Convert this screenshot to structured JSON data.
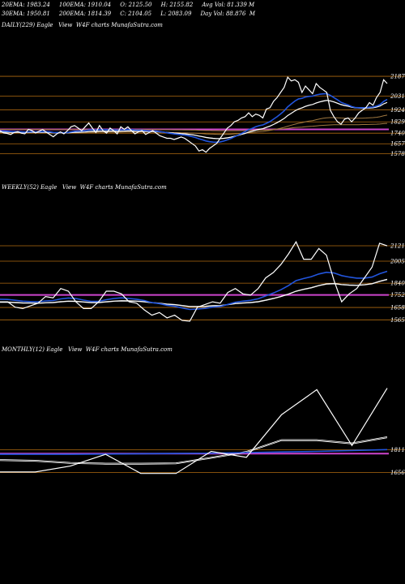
{
  "header": {
    "line1": "20EMA: 1983.24     100EMA: 1910.04     O: 2125.50     H: 2155.82     Avg Vol: 81.339 M",
    "line2": "30EMA: 1950.81     200EMA: 1814.39     C: 2104.05     L: 2083.09     Day Vol: 88.876  M",
    "daily_title": "DAILY(229) Eagle   View  W4F charts MunafaSutra.com",
    "weekly_title": "WEEKLY(52) Eagle   View  W4F charts MunafaSutra.com",
    "monthly_title": "MONTHLY(12) Eagle   View  W4F charts MunafaSutra.com"
  },
  "colors": {
    "background": "#000000",
    "price": "#ffffff",
    "ema_short": "#2255dd",
    "ema_band": "#ffffff",
    "support_line": "#cc44cc",
    "grid": "#b06a10"
  },
  "chart_data": [
    {
      "type": "line",
      "name": "daily",
      "title": "DAILY(229) Eagle   View  W4F charts MunafaSutra.com",
      "yticks": [
        2187,
        2031,
        1924,
        1829,
        1740,
        1657,
        1578
      ],
      "ylim": [
        1480,
        2200
      ],
      "price": [
        1760,
        1742,
        1738,
        1730,
        1745,
        1752,
        1740,
        1735,
        1770,
        1760,
        1742,
        1755,
        1768,
        1748,
        1730,
        1712,
        1735,
        1750,
        1735,
        1760,
        1790,
        1800,
        1780,
        1760,
        1790,
        1820,
        1780,
        1745,
        1800,
        1760,
        1740,
        1780,
        1760,
        1735,
        1790,
        1770,
        1790,
        1760,
        1735,
        1750,
        1760,
        1730,
        1745,
        1760,
        1740,
        1720,
        1710,
        1700,
        1700,
        1690,
        1700,
        1710,
        1700,
        1680,
        1660,
        1640,
        1600,
        1610,
        1590,
        1620,
        1640,
        1660,
        1700,
        1740,
        1780,
        1800,
        1830,
        1840,
        1860,
        1870,
        1900,
        1870,
        1890,
        1880,
        1860,
        1930,
        1940,
        1990,
        2020,
        2060,
        2100,
        2180,
        2150,
        2160,
        2140,
        2060,
        2110,
        2080,
        2050,
        2130,
        2100,
        2080,
        2060,
        1920,
        1870,
        1830,
        1810,
        1850,
        1860,
        1830,
        1860,
        1900,
        1920,
        1940,
        1980,
        1960,
        2020,
        2060,
        2160,
        2130
      ],
      "ema_fast": [
        1758,
        1757,
        1755,
        1753,
        1752,
        1752,
        1751,
        1749,
        1751,
        1752,
        1751,
        1751,
        1753,
        1752,
        1750,
        1746,
        1745,
        1745,
        1744,
        1745,
        1750,
        1755,
        1757,
        1757,
        1760,
        1765,
        1766,
        1765,
        1768,
        1768,
        1766,
        1767,
        1767,
        1764,
        1766,
        1767,
        1769,
        1768,
        1764,
        1763,
        1763,
        1760,
        1758,
        1758,
        1756,
        1752,
        1748,
        1743,
        1739,
        1734,
        1731,
        1728,
        1725,
        1720,
        1714,
        1706,
        1696,
        1688,
        1679,
        1673,
        1670,
        1669,
        1672,
        1678,
        1688,
        1698,
        1711,
        1724,
        1738,
        1752,
        1768,
        1778,
        1790,
        1799,
        1805,
        1818,
        1831,
        1850,
        1869,
        1891,
        1915,
        1947,
        1970,
        1992,
        2009,
        2014,
        2024,
        2029,
        2031,
        2040,
        2046,
        2049,
        2050,
        2037,
        2020,
        2002,
        1983,
        1971,
        1962,
        1949,
        1942,
        1940,
        1940,
        1940,
        1944,
        1945,
        1953,
        1965,
        1990,
        2005
      ],
      "ema_band_a": [
        1752,
        1751,
        1750,
        1749,
        1749,
        1748,
        1748,
        1747,
        1748,
        1748,
        1748,
        1748,
        1749,
        1748,
        1747,
        1745,
        1744,
        1744,
        1744,
        1744,
        1746,
        1748,
        1749,
        1750,
        1751,
        1754,
        1755,
        1755,
        1757,
        1757,
        1756,
        1757,
        1757,
        1756,
        1757,
        1758,
        1759,
        1759,
        1757,
        1757,
        1757,
        1756,
        1755,
        1755,
        1754,
        1752,
        1750,
        1747,
        1745,
        1742,
        1740,
        1738,
        1736,
        1733,
        1730,
        1725,
        1719,
        1714,
        1708,
        1704,
        1701,
        1699,
        1699,
        1701,
        1705,
        1710,
        1717,
        1724,
        1732,
        1740,
        1750,
        1757,
        1765,
        1772,
        1777,
        1787,
        1797,
        1810,
        1824,
        1840,
        1857,
        1880,
        1898,
        1916,
        1931,
        1940,
        1952,
        1961,
        1967,
        1978,
        1987,
        1994,
        1999,
        1995,
        1987,
        1977,
        1966,
        1959,
        1954,
        1946,
        1941,
        1939,
        1938,
        1938,
        1940,
        1941,
        1947,
        1955,
        1972,
        1983
      ],
      "ema_band_b": [
        1749,
        1748,
        1747,
        1746,
        1746,
        1745,
        1745,
        1744,
        1745,
        1745,
        1745,
        1745,
        1746,
        1745,
        1744,
        1742,
        1741,
        1741,
        1741,
        1741,
        1743,
        1745,
        1746,
        1747,
        1748,
        1751,
        1752,
        1752,
        1754,
        1754,
        1753,
        1754,
        1754,
        1753,
        1754,
        1755,
        1756,
        1756,
        1754,
        1754,
        1754,
        1753,
        1752,
        1752,
        1751,
        1749,
        1747,
        1744,
        1742,
        1739,
        1737,
        1735,
        1733,
        1730,
        1727,
        1722,
        1716,
        1711,
        1705,
        1701,
        1698,
        1696,
        1696,
        1698,
        1702,
        1707,
        1714,
        1721,
        1729,
        1737,
        1747,
        1754,
        1762,
        1769,
        1774,
        1784,
        1794,
        1807,
        1821,
        1837,
        1854,
        1877,
        1895,
        1913,
        1928,
        1937,
        1949,
        1958,
        1964,
        1975,
        1984,
        1991,
        1996,
        1992,
        1984,
        1974,
        1963,
        1956,
        1951,
        1943,
        1938,
        1936,
        1935,
        1935,
        1937,
        1938,
        1944,
        1952,
        1969,
        1980
      ],
      "ema_slow": [
        1745,
        1745,
        1745,
        1745,
        1745,
        1745,
        1745,
        1745,
        1745,
        1745,
        1745,
        1745,
        1745,
        1745,
        1745,
        1744,
        1744,
        1744,
        1744,
        1744,
        1745,
        1745,
        1746,
        1746,
        1746,
        1747,
        1747,
        1747,
        1748,
        1748,
        1748,
        1748,
        1748,
        1748,
        1748,
        1749,
        1749,
        1749,
        1749,
        1749,
        1749,
        1749,
        1749,
        1749,
        1748,
        1748,
        1747,
        1747,
        1746,
        1745,
        1745,
        1744,
        1743,
        1742,
        1741,
        1740,
        1738,
        1736,
        1734,
        1733,
        1732,
        1731,
        1730,
        1730,
        1731,
        1732,
        1734,
        1736,
        1738,
        1740,
        1744,
        1746,
        1749,
        1752,
        1754,
        1758,
        1762,
        1767,
        1773,
        1779,
        1786,
        1795,
        1803,
        1811,
        1818,
        1823,
        1830,
        1835,
        1839,
        1846,
        1852,
        1857,
        1861,
        1862,
        1862,
        1861,
        1859,
        1858,
        1858,
        1857,
        1857,
        1857,
        1858,
        1859,
        1861,
        1862,
        1865,
        1869,
        1876,
        1882
      ],
      "ema_200": [
        1770,
        1770,
        1770,
        1770,
        1769,
        1769,
        1769,
        1769,
        1769,
        1769,
        1769,
        1769,
        1769,
        1769,
        1769,
        1768,
        1768,
        1768,
        1768,
        1768,
        1768,
        1768,
        1768,
        1768,
        1768,
        1768,
        1768,
        1768,
        1768,
        1768,
        1768,
        1768,
        1768,
        1768,
        1768,
        1768,
        1768,
        1768,
        1768,
        1768,
        1768,
        1768,
        1768,
        1768,
        1768,
        1768,
        1767,
        1767,
        1767,
        1766,
        1766,
        1766,
        1765,
        1765,
        1764,
        1764,
        1763,
        1762,
        1761,
        1761,
        1760,
        1760,
        1759,
        1759,
        1759,
        1759,
        1759,
        1760,
        1760,
        1761,
        1762,
        1762,
        1763,
        1764,
        1765,
        1766,
        1767,
        1769,
        1771,
        1773,
        1775,
        1778,
        1781,
        1784,
        1786,
        1788,
        1791,
        1793,
        1795,
        1797,
        1800,
        1802,
        1804,
        1805,
        1806,
        1806,
        1806,
        1806,
        1807,
        1807,
        1807,
        1807,
        1808,
        1808,
        1809,
        1810,
        1811,
        1812,
        1815,
        1817
      ],
      "support_level": 1770
    },
    {
      "type": "line",
      "name": "weekly",
      "title": "WEEKLY(52) Eagle   View  W4F charts MunafaSutra.com",
      "yticks": [
        2121,
        2005,
        1840,
        1752,
        1658,
        1565
      ],
      "ylim": [
        1500,
        2200
      ],
      "price": [
        1700,
        1700,
        1660,
        1650,
        1670,
        1690,
        1740,
        1730,
        1800,
        1780,
        1700,
        1650,
        1650,
        1700,
        1780,
        1780,
        1760,
        1700,
        1690,
        1640,
        1600,
        1620,
        1580,
        1600,
        1560,
        1555,
        1660,
        1680,
        1700,
        1690,
        1770,
        1800,
        1760,
        1750,
        1800,
        1880,
        1920,
        1980,
        2060,
        2150,
        2020,
        2020,
        2100,
        2050,
        1860,
        1700,
        1760,
        1800,
        1880,
        1960,
        2140,
        2120
      ],
      "ema_fast": [
        1720,
        1718,
        1712,
        1705,
        1702,
        1701,
        1707,
        1710,
        1722,
        1729,
        1725,
        1713,
        1704,
        1704,
        1716,
        1725,
        1730,
        1725,
        1720,
        1710,
        1694,
        1687,
        1674,
        1667,
        1654,
        1643,
        1646,
        1651,
        1660,
        1665,
        1681,
        1697,
        1705,
        1711,
        1723,
        1744,
        1766,
        1791,
        1822,
        1859,
        1875,
        1889,
        1909,
        1922,
        1917,
        1897,
        1886,
        1878,
        1878,
        1886,
        1911,
        1929
      ],
      "ema_band_a": [
        1700,
        1700,
        1697,
        1694,
        1693,
        1692,
        1695,
        1697,
        1703,
        1707,
        1706,
        1701,
        1697,
        1697,
        1702,
        1707,
        1710,
        1709,
        1707,
        1703,
        1696,
        1692,
        1685,
        1681,
        1674,
        1667,
        1667,
        1668,
        1672,
        1674,
        1681,
        1689,
        1693,
        1697,
        1703,
        1714,
        1727,
        1742,
        1760,
        1782,
        1796,
        1808,
        1824,
        1836,
        1839,
        1832,
        1828,
        1826,
        1830,
        1838,
        1856,
        1870
      ],
      "ema_band_b": [
        1696,
        1696,
        1693,
        1690,
        1689,
        1688,
        1691,
        1693,
        1699,
        1703,
        1702,
        1697,
        1693,
        1693,
        1698,
        1703,
        1706,
        1705,
        1703,
        1699,
        1692,
        1688,
        1681,
        1677,
        1670,
        1663,
        1663,
        1664,
        1668,
        1670,
        1677,
        1685,
        1689,
        1693,
        1699,
        1710,
        1723,
        1738,
        1756,
        1778,
        1792,
        1804,
        1820,
        1832,
        1835,
        1828,
        1824,
        1822,
        1826,
        1834,
        1852,
        1866
      ],
      "support_level": 1752
    },
    {
      "type": "line",
      "name": "monthly",
      "title": "MONTHLY(12) Eagle   View  W4F charts MunafaSutra.com",
      "yticks": [
        1811,
        1656
      ],
      "ylim": [
        1560,
        2250
      ],
      "price": [
        1660,
        1660,
        1700,
        1780,
        1650,
        1650,
        1800,
        1760,
        2050,
        2220,
        1840,
        2230
      ],
      "ema_fast": [
        1780,
        1780,
        1780,
        1782,
        1784,
        1786,
        1788,
        1792,
        1796,
        1800,
        1806,
        1812
      ],
      "ema_band_a": [
        1745,
        1740,
        1725,
        1720,
        1720,
        1722,
        1760,
        1800,
        1880,
        1880,
        1858,
        1900
      ],
      "ema_band_b": [
        1738,
        1733,
        1718,
        1713,
        1713,
        1715,
        1753,
        1793,
        1873,
        1873,
        1851,
        1893
      ],
      "support_level": 1785
    }
  ]
}
